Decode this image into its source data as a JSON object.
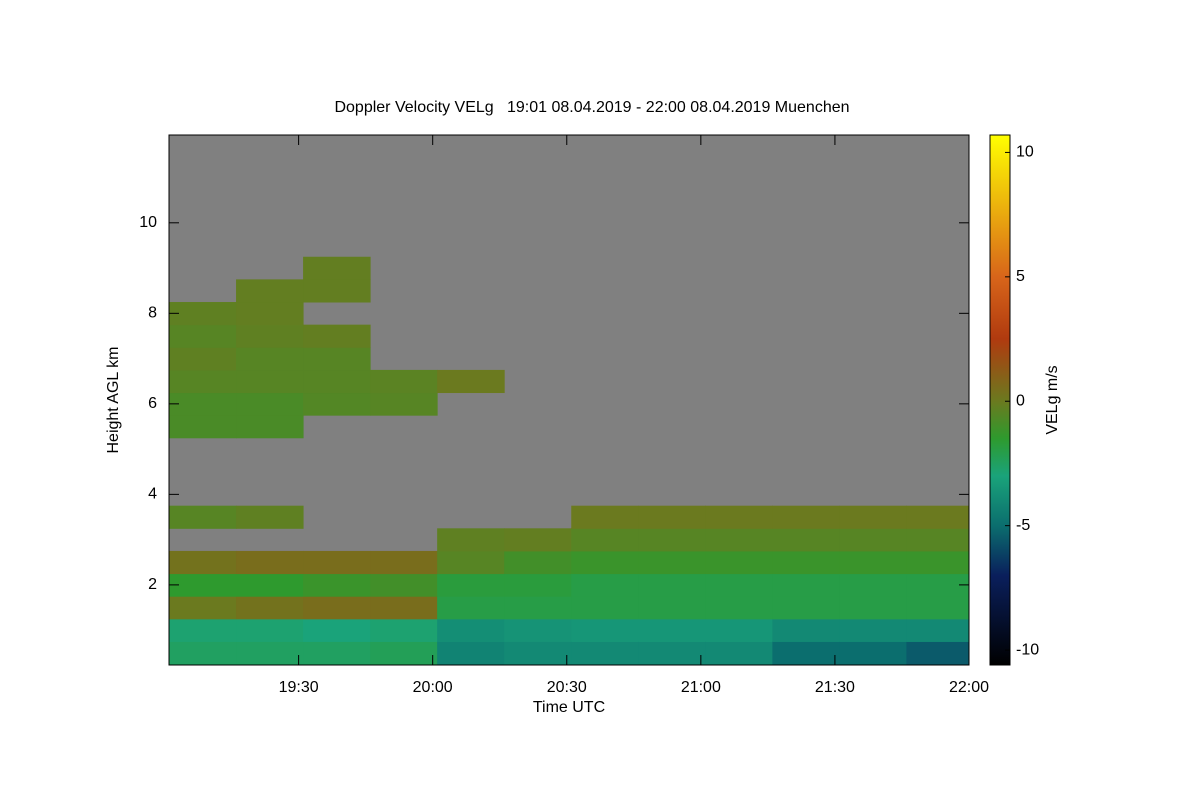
{
  "chart_data": {
    "type": "heatmap",
    "title": "Doppler Velocity VELg   19:01 08.04.2019 - 22:00 08.04.2019 Muenchen",
    "x_label": "Time UTC",
    "y_label": "Height AGL km",
    "colorbar_label": "VELg m/s",
    "missing_color": "#808080",
    "xlim": [
      1141,
      1320
    ],
    "xticks": [
      {
        "value": 1170,
        "label": "19:30"
      },
      {
        "value": 1200,
        "label": "20:00"
      },
      {
        "value": 1230,
        "label": "20:30"
      },
      {
        "value": 1260,
        "label": "21:00"
      },
      {
        "value": 1290,
        "label": "21:30"
      },
      {
        "value": 1320,
        "label": "22:00"
      }
    ],
    "ylim": [
      0.23,
      11.94
    ],
    "yticks": [
      2,
      4,
      6,
      8,
      10
    ],
    "zlim": [
      -10.6,
      10.7
    ],
    "zticks": [
      -10,
      -5,
      0,
      5,
      10
    ],
    "colorscale": [
      [
        -10.6,
        "#000000"
      ],
      [
        -7,
        "#0a1f5c"
      ],
      [
        -5,
        "#0b6e6e"
      ],
      [
        -3,
        "#1aa37a"
      ],
      [
        -1.5,
        "#2e9a2e"
      ],
      [
        0,
        "#6b7a1f"
      ],
      [
        2.5,
        "#b03a0f"
      ],
      [
        5,
        "#d8651a"
      ],
      [
        10.7,
        "#ffff00"
      ]
    ],
    "x": [
      1148.5,
      1163.5,
      1178.5,
      1193.5,
      1208.5,
      1223.5,
      1238.5,
      1253.5,
      1268.5,
      1283.5,
      1298.5,
      1313.5
    ],
    "y": [
      0.5,
      1,
      1.5,
      2,
      2.5,
      3,
      3.5,
      4,
      4.5,
      5,
      5.5,
      6,
      6.5,
      7,
      7.5,
      8,
      8.5,
      9,
      9.5,
      10,
      10.5,
      11,
      11.5
    ],
    "values": [
      [
        -2.5,
        -2.8,
        0,
        -1.5,
        0.3,
        null,
        -0.5,
        null,
        null,
        null,
        -0.8,
        -0.8,
        -0.5,
        -0.3,
        -0.5,
        -0.3,
        null,
        null,
        null,
        null,
        null,
        null,
        null
      ],
      [
        -2.5,
        -2.8,
        0.3,
        -1.5,
        0.5,
        null,
        -0.3,
        null,
        null,
        null,
        -0.8,
        -0.8,
        -0.5,
        -0.5,
        -0.3,
        -0.2,
        -0.2,
        null,
        null,
        null,
        null,
        null,
        null
      ],
      [
        -2.5,
        -3,
        0.5,
        -1.2,
        0.5,
        null,
        null,
        null,
        null,
        null,
        null,
        -0.6,
        -0.5,
        -0.5,
        -0.2,
        null,
        -0.2,
        -0.2,
        null,
        null,
        null,
        null,
        null
      ],
      [
        -2.3,
        -2.8,
        0.5,
        -1,
        0.5,
        null,
        null,
        null,
        null,
        null,
        null,
        -0.5,
        -0.4,
        null,
        null,
        null,
        null,
        null,
        null,
        null,
        null,
        null,
        null
      ],
      [
        -4.2,
        -3.8,
        -2,
        -1.8,
        -0.5,
        -0.3,
        null,
        null,
        null,
        null,
        null,
        null,
        0,
        null,
        null,
        null,
        null,
        null,
        null,
        null,
        null,
        null,
        null
      ],
      [
        -4,
        -3.6,
        -2,
        -1.8,
        -1,
        -0.2,
        null,
        null,
        null,
        null,
        null,
        null,
        null,
        null,
        null,
        null,
        null,
        null,
        null,
        null,
        null,
        null,
        null
      ],
      [
        -4,
        -3.5,
        -2,
        -2,
        -1.2,
        -0.5,
        0,
        null,
        null,
        null,
        null,
        null,
        null,
        null,
        null,
        null,
        null,
        null,
        null,
        null,
        null,
        null,
        null
      ],
      [
        -4,
        -3.5,
        -2,
        -2,
        -1.2,
        -0.5,
        0,
        null,
        null,
        null,
        null,
        null,
        null,
        null,
        null,
        null,
        null,
        null,
        null,
        null,
        null,
        null,
        null
      ],
      [
        -4,
        -3.5,
        -2,
        -2,
        -1.2,
        -0.5,
        0,
        null,
        null,
        null,
        null,
        null,
        null,
        null,
        null,
        null,
        null,
        null,
        null,
        null,
        null,
        null,
        null
      ],
      [
        -5,
        -4,
        -2,
        -2,
        -1.2,
        -0.5,
        0,
        null,
        null,
        null,
        null,
        null,
        null,
        null,
        null,
        null,
        null,
        null,
        null,
        null,
        null,
        null,
        null
      ],
      [
        -5,
        -4,
        -2,
        -2,
        -1.2,
        -0.5,
        0,
        null,
        null,
        null,
        null,
        null,
        null,
        null,
        null,
        null,
        null,
        null,
        null,
        null,
        null,
        null,
        null
      ],
      [
        -5.5,
        -4,
        -2,
        -2,
        -1.2,
        -0.5,
        0,
        null,
        null,
        null,
        null,
        null,
        null,
        null,
        null,
        null,
        null,
        null,
        null,
        null,
        null,
        null,
        null
      ]
    ]
  }
}
